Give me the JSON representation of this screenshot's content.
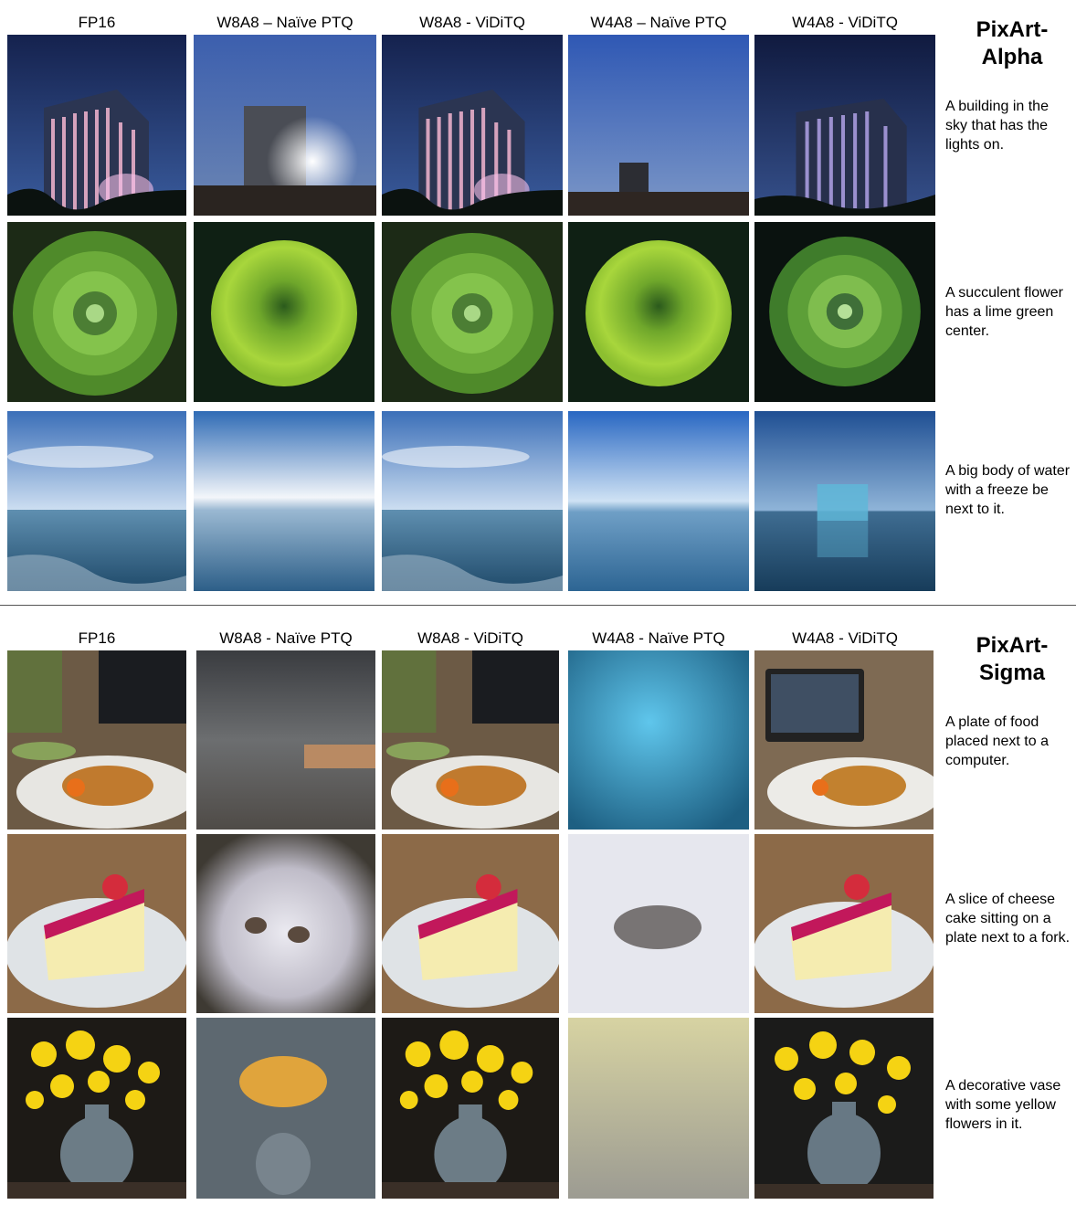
{
  "pixart_alpha": {
    "title_line1": "PixArt-",
    "title_line2": "Alpha",
    "columns": [
      "FP16",
      "W8A8 – Naïve PTQ",
      "W8A8 - ViDiTQ",
      "W4A8 – Naïve PTQ",
      "W4A8 - ViDiTQ"
    ],
    "prompts": [
      "A building in the sky that has the lights on.",
      "A succulent flower has a lime green center.",
      "A big body of water with a freeze be next to it."
    ]
  },
  "pixart_sigma": {
    "title_line1": "PixArt-",
    "title_line2": "Sigma",
    "columns": [
      "FP16",
      "W8A8 - Naïve PTQ",
      "W8A8 - ViDiTQ",
      "W4A8 - Naïve PTQ",
      "W4A8 - ViDiTQ"
    ],
    "prompts": [
      "A plate of food placed next to a computer.",
      "A slice of cheese cake sitting on a plate next to a fork.",
      "A decorative vase with some yellow flowers in it."
    ]
  }
}
